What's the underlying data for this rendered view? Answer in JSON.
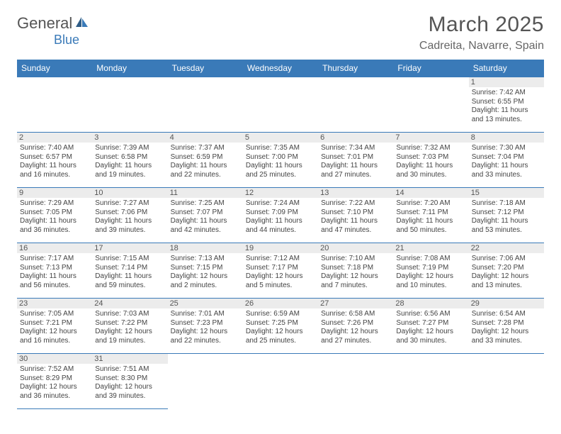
{
  "brand": {
    "text_a": "General",
    "text_b": "Blue",
    "accent_color": "#3a7ab8"
  },
  "header": {
    "title": "March 2025",
    "location": "Cadreita, Navarre, Spain"
  },
  "calendar": {
    "columns": [
      "Sunday",
      "Monday",
      "Tuesday",
      "Wednesday",
      "Thursday",
      "Friday",
      "Saturday"
    ],
    "header_bg": "#3a7ab8",
    "header_text_color": "#ffffff",
    "daynum_bg": "#ececec",
    "border_color": "#3a7ab8",
    "weeks": [
      [
        null,
        null,
        null,
        null,
        null,
        null,
        {
          "n": "1",
          "sunrise": "Sunrise: 7:42 AM",
          "sunset": "Sunset: 6:55 PM",
          "day1": "Daylight: 11 hours",
          "day2": "and 13 minutes."
        }
      ],
      [
        {
          "n": "2",
          "sunrise": "Sunrise: 7:40 AM",
          "sunset": "Sunset: 6:57 PM",
          "day1": "Daylight: 11 hours",
          "day2": "and 16 minutes."
        },
        {
          "n": "3",
          "sunrise": "Sunrise: 7:39 AM",
          "sunset": "Sunset: 6:58 PM",
          "day1": "Daylight: 11 hours",
          "day2": "and 19 minutes."
        },
        {
          "n": "4",
          "sunrise": "Sunrise: 7:37 AM",
          "sunset": "Sunset: 6:59 PM",
          "day1": "Daylight: 11 hours",
          "day2": "and 22 minutes."
        },
        {
          "n": "5",
          "sunrise": "Sunrise: 7:35 AM",
          "sunset": "Sunset: 7:00 PM",
          "day1": "Daylight: 11 hours",
          "day2": "and 25 minutes."
        },
        {
          "n": "6",
          "sunrise": "Sunrise: 7:34 AM",
          "sunset": "Sunset: 7:01 PM",
          "day1": "Daylight: 11 hours",
          "day2": "and 27 minutes."
        },
        {
          "n": "7",
          "sunrise": "Sunrise: 7:32 AM",
          "sunset": "Sunset: 7:03 PM",
          "day1": "Daylight: 11 hours",
          "day2": "and 30 minutes."
        },
        {
          "n": "8",
          "sunrise": "Sunrise: 7:30 AM",
          "sunset": "Sunset: 7:04 PM",
          "day1": "Daylight: 11 hours",
          "day2": "and 33 minutes."
        }
      ],
      [
        {
          "n": "9",
          "sunrise": "Sunrise: 7:29 AM",
          "sunset": "Sunset: 7:05 PM",
          "day1": "Daylight: 11 hours",
          "day2": "and 36 minutes."
        },
        {
          "n": "10",
          "sunrise": "Sunrise: 7:27 AM",
          "sunset": "Sunset: 7:06 PM",
          "day1": "Daylight: 11 hours",
          "day2": "and 39 minutes."
        },
        {
          "n": "11",
          "sunrise": "Sunrise: 7:25 AM",
          "sunset": "Sunset: 7:07 PM",
          "day1": "Daylight: 11 hours",
          "day2": "and 42 minutes."
        },
        {
          "n": "12",
          "sunrise": "Sunrise: 7:24 AM",
          "sunset": "Sunset: 7:09 PM",
          "day1": "Daylight: 11 hours",
          "day2": "and 44 minutes."
        },
        {
          "n": "13",
          "sunrise": "Sunrise: 7:22 AM",
          "sunset": "Sunset: 7:10 PM",
          "day1": "Daylight: 11 hours",
          "day2": "and 47 minutes."
        },
        {
          "n": "14",
          "sunrise": "Sunrise: 7:20 AM",
          "sunset": "Sunset: 7:11 PM",
          "day1": "Daylight: 11 hours",
          "day2": "and 50 minutes."
        },
        {
          "n": "15",
          "sunrise": "Sunrise: 7:18 AM",
          "sunset": "Sunset: 7:12 PM",
          "day1": "Daylight: 11 hours",
          "day2": "and 53 minutes."
        }
      ],
      [
        {
          "n": "16",
          "sunrise": "Sunrise: 7:17 AM",
          "sunset": "Sunset: 7:13 PM",
          "day1": "Daylight: 11 hours",
          "day2": "and 56 minutes."
        },
        {
          "n": "17",
          "sunrise": "Sunrise: 7:15 AM",
          "sunset": "Sunset: 7:14 PM",
          "day1": "Daylight: 11 hours",
          "day2": "and 59 minutes."
        },
        {
          "n": "18",
          "sunrise": "Sunrise: 7:13 AM",
          "sunset": "Sunset: 7:15 PM",
          "day1": "Daylight: 12 hours",
          "day2": "and 2 minutes."
        },
        {
          "n": "19",
          "sunrise": "Sunrise: 7:12 AM",
          "sunset": "Sunset: 7:17 PM",
          "day1": "Daylight: 12 hours",
          "day2": "and 5 minutes."
        },
        {
          "n": "20",
          "sunrise": "Sunrise: 7:10 AM",
          "sunset": "Sunset: 7:18 PM",
          "day1": "Daylight: 12 hours",
          "day2": "and 7 minutes."
        },
        {
          "n": "21",
          "sunrise": "Sunrise: 7:08 AM",
          "sunset": "Sunset: 7:19 PM",
          "day1": "Daylight: 12 hours",
          "day2": "and 10 minutes."
        },
        {
          "n": "22",
          "sunrise": "Sunrise: 7:06 AM",
          "sunset": "Sunset: 7:20 PM",
          "day1": "Daylight: 12 hours",
          "day2": "and 13 minutes."
        }
      ],
      [
        {
          "n": "23",
          "sunrise": "Sunrise: 7:05 AM",
          "sunset": "Sunset: 7:21 PM",
          "day1": "Daylight: 12 hours",
          "day2": "and 16 minutes."
        },
        {
          "n": "24",
          "sunrise": "Sunrise: 7:03 AM",
          "sunset": "Sunset: 7:22 PM",
          "day1": "Daylight: 12 hours",
          "day2": "and 19 minutes."
        },
        {
          "n": "25",
          "sunrise": "Sunrise: 7:01 AM",
          "sunset": "Sunset: 7:23 PM",
          "day1": "Daylight: 12 hours",
          "day2": "and 22 minutes."
        },
        {
          "n": "26",
          "sunrise": "Sunrise: 6:59 AM",
          "sunset": "Sunset: 7:25 PM",
          "day1": "Daylight: 12 hours",
          "day2": "and 25 minutes."
        },
        {
          "n": "27",
          "sunrise": "Sunrise: 6:58 AM",
          "sunset": "Sunset: 7:26 PM",
          "day1": "Daylight: 12 hours",
          "day2": "and 27 minutes."
        },
        {
          "n": "28",
          "sunrise": "Sunrise: 6:56 AM",
          "sunset": "Sunset: 7:27 PM",
          "day1": "Daylight: 12 hours",
          "day2": "and 30 minutes."
        },
        {
          "n": "29",
          "sunrise": "Sunrise: 6:54 AM",
          "sunset": "Sunset: 7:28 PM",
          "day1": "Daylight: 12 hours",
          "day2": "and 33 minutes."
        }
      ],
      [
        {
          "n": "30",
          "sunrise": "Sunrise: 7:52 AM",
          "sunset": "Sunset: 8:29 PM",
          "day1": "Daylight: 12 hours",
          "day2": "and 36 minutes."
        },
        {
          "n": "31",
          "sunrise": "Sunrise: 7:51 AM",
          "sunset": "Sunset: 8:30 PM",
          "day1": "Daylight: 12 hours",
          "day2": "and 39 minutes."
        },
        null,
        null,
        null,
        null,
        null
      ]
    ]
  }
}
